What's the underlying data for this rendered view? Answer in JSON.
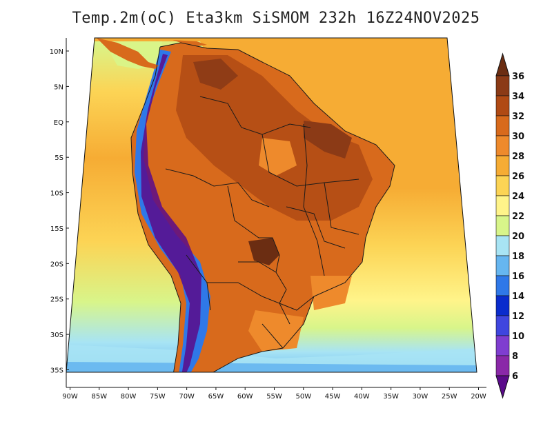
{
  "title": "Temp.2m(oC) Eta3km SiSMOM 232h 16Z24NOV2025",
  "map": {
    "variable": "2 m air temperature",
    "unit": "°C",
    "lat_labels": [
      "10N",
      "5N",
      "EQ",
      "5S",
      "10S",
      "15S",
      "20S",
      "25S",
      "30S",
      "35S"
    ],
    "lat_values": [
      10,
      5,
      0,
      -5,
      -10,
      -15,
      -20,
      -25,
      -30,
      -35
    ],
    "lon_labels": [
      "90W",
      "85W",
      "80W",
      "75W",
      "70W",
      "65W",
      "60W",
      "55W",
      "50W",
      "45W",
      "40W",
      "35W",
      "30W",
      "25W",
      "20W"
    ],
    "lon_values": [
      -90,
      -85,
      -80,
      -75,
      -70,
      -65,
      -60,
      -55,
      -50,
      -45,
      -40,
      -35,
      -30,
      -25,
      -20
    ],
    "lat_range": [
      -38,
      12
    ],
    "lon_range": [
      -91,
      -19
    ]
  },
  "colorbar": {
    "labels": [
      "36",
      "34",
      "32",
      "30",
      "28",
      "26",
      "24",
      "22",
      "20",
      "18",
      "16",
      "14",
      "12",
      "10",
      "8",
      "6"
    ],
    "colors": [
      "#6b2d12",
      "#8b3a16",
      "#b04a14",
      "#d86a1c",
      "#ee8a2c",
      "#f6ac34",
      "#fcd455",
      "#fff48a",
      "#d8f58a",
      "#a8e4f4",
      "#66b6f0",
      "#2f78e8",
      "#0a2ccd",
      "#3f46df",
      "#7f3dd0",
      "#8a28a8",
      "#5a0a8a"
    ],
    "top_arrow_color": "#6b2d12",
    "bottom_arrow_color": "#5a0a8a"
  },
  "colors": {
    "ocean_warm": "#f6ac34",
    "ocean_mid": "#fcd455",
    "ocean_cool": "#fff48a",
    "ocean_cold": "#a8e4f4",
    "land_hot": "#b04a14",
    "land_very_hot": "#6b2d12",
    "land_warm": "#d86a1c",
    "andes_cold": "#2f78e8",
    "andes_very_cold": "#5a0a8a",
    "border": "#1a1a1a"
  }
}
